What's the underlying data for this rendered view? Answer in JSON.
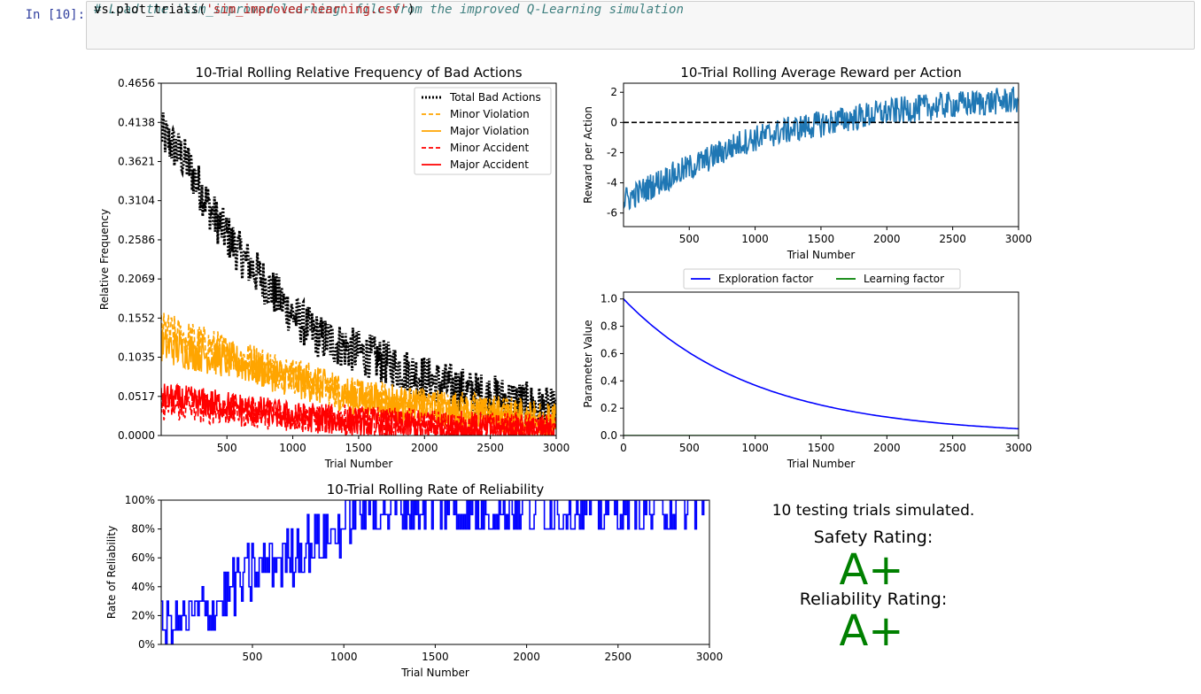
{
  "prompt": "In [10]:",
  "code": {
    "comment": "# Load the 'sim_improved-learning' file from the improved Q-Learning simulation",
    "call_prefix": "vs.plot_trials(",
    "call_arg": "'sim_improved-learning.csv'",
    "call_suffix": ")"
  },
  "summary": {
    "trials_text": "10 testing trials simulated.",
    "safety_label": "Safety Rating:",
    "safety_grade": "A+",
    "reliability_label": "Reliability Rating:",
    "reliability_grade": "A+",
    "grade_color": "#008000"
  },
  "chart_data": [
    {
      "id": "bad_actions",
      "type": "line",
      "title": "10-Trial Rolling Relative Frequency of Bad Actions",
      "xlabel": "Trial Number",
      "ylabel": "Relative Frequency",
      "xlim": [
        1,
        3000
      ],
      "ylim": [
        0,
        0.4656
      ],
      "xticks": [
        "500",
        "1000",
        "1500",
        "2000",
        "2500",
        "3000"
      ],
      "yticks": [
        "0.0000",
        "0.0517",
        "0.1035",
        "0.1552",
        "0.2069",
        "0.2586",
        "0.3104",
        "0.3621",
        "0.4138",
        "0.4656"
      ],
      "legend": "top-right",
      "series": [
        {
          "name": "Total Bad Actions",
          "color": "#000000",
          "style": "dotted",
          "trend": [
            [
              1,
              0.4
            ],
            [
              200,
              0.36
            ],
            [
              400,
              0.29
            ],
            [
              600,
              0.24
            ],
            [
              800,
              0.2
            ],
            [
              1000,
              0.16
            ],
            [
              1200,
              0.13
            ],
            [
              1500,
              0.11
            ],
            [
              1800,
              0.09
            ],
            [
              2100,
              0.07
            ],
            [
              2400,
              0.055
            ],
            [
              2700,
              0.045
            ],
            [
              3000,
              0.03
            ]
          ],
          "noise": 0.03
        },
        {
          "name": "Minor Violation",
          "color": "#ffa500",
          "style": "dashed",
          "trend": [
            [
              1,
              0.14
            ],
            [
              500,
              0.11
            ],
            [
              1000,
              0.08
            ],
            [
              1500,
              0.05
            ],
            [
              2000,
              0.04
            ],
            [
              2500,
              0.03
            ],
            [
              3000,
              0.02
            ]
          ],
          "noise": 0.025
        },
        {
          "name": "Major Violation",
          "color": "#ffa500",
          "style": "solid",
          "trend": [
            [
              1,
              0.12
            ],
            [
              500,
              0.1
            ],
            [
              1000,
              0.075
            ],
            [
              1500,
              0.05
            ],
            [
              2000,
              0.035
            ],
            [
              2500,
              0.025
            ],
            [
              3000,
              0.015
            ]
          ],
          "noise": 0.025
        },
        {
          "name": "Minor Accident",
          "color": "#ff0000",
          "style": "dashed",
          "trend": [
            [
              1,
              0.04
            ],
            [
              1000,
              0.025
            ],
            [
              2000,
              0.015
            ],
            [
              3000,
              0.008
            ]
          ],
          "noise": 0.02
        },
        {
          "name": "Major Accident",
          "color": "#ff0000",
          "style": "solid",
          "trend": [
            [
              1,
              0.05
            ],
            [
              500,
              0.04
            ],
            [
              1000,
              0.025
            ],
            [
              2000,
              0.01
            ],
            [
              3000,
              0.005
            ]
          ],
          "noise": 0.02
        }
      ]
    },
    {
      "id": "reward",
      "type": "line",
      "title": "10-Trial Rolling Average Reward per Action",
      "xlabel": "Trial Number",
      "ylabel": "Reward per Action",
      "xlim": [
        1,
        3000
      ],
      "ylim": [
        -6.9,
        2.6
      ],
      "xticks": [
        "500",
        "1000",
        "1500",
        "2000",
        "2500",
        "3000"
      ],
      "yticks": [
        "-6",
        "-4",
        "-2",
        "0",
        "2"
      ],
      "series": [
        {
          "name": "",
          "color": "#1f77b4",
          "style": "solid",
          "trend": [
            [
              1,
              -5.2
            ],
            [
              300,
              -3.8
            ],
            [
              600,
              -2.6
            ],
            [
              900,
              -1.3
            ],
            [
              1200,
              -0.6
            ],
            [
              1500,
              -0.1
            ],
            [
              1800,
              0.4
            ],
            [
              2100,
              0.8
            ],
            [
              2400,
              1.1
            ],
            [
              2700,
              1.3
            ],
            [
              3000,
              1.5
            ]
          ],
          "noise": 0.9
        },
        {
          "name": "",
          "color": "#000000",
          "style": "dashed",
          "const": 0
        }
      ]
    },
    {
      "id": "parameters",
      "type": "line",
      "xlabel": "Trial Number",
      "ylabel": "Parameter Value",
      "xlim": [
        0,
        3000
      ],
      "ylim": [
        0,
        1.05
      ],
      "xticks": [
        "0",
        "500",
        "1000",
        "1500",
        "2000",
        "2500",
        "3000"
      ],
      "yticks": [
        "0.0",
        "0.2",
        "0.4",
        "0.6",
        "0.8",
        "1.0"
      ],
      "legend": "top-center",
      "series": [
        {
          "name": "Exploration factor",
          "color": "#0000ff",
          "style": "solid",
          "decay_rate": 0.001
        },
        {
          "name": "Learning factor",
          "color": "#008000",
          "style": "solid",
          "const": 0.0
        }
      ]
    },
    {
      "id": "reliability",
      "type": "line",
      "title": "10-Trial Rolling Rate of Reliability",
      "xlabel": "Trial Number",
      "ylabel": "Rate of Reliability",
      "xlim": [
        1,
        3000
      ],
      "ylim": [
        0,
        100
      ],
      "xticks": [
        "500",
        "1000",
        "1500",
        "2000",
        "2500",
        "3000"
      ],
      "yticks": [
        "0%",
        "20%",
        "40%",
        "60%",
        "80%",
        "100%"
      ],
      "series": [
        {
          "name": "",
          "color": "#0000ff",
          "style": "steps",
          "trend": [
            [
              1,
              10
            ],
            [
              250,
              25
            ],
            [
              500,
              50
            ],
            [
              750,
              65
            ],
            [
              1000,
              80
            ],
            [
              1050,
              95
            ],
            [
              1500,
              95
            ],
            [
              2000,
              95
            ],
            [
              3000,
              97
            ]
          ],
          "noise": 20
        }
      ]
    }
  ]
}
